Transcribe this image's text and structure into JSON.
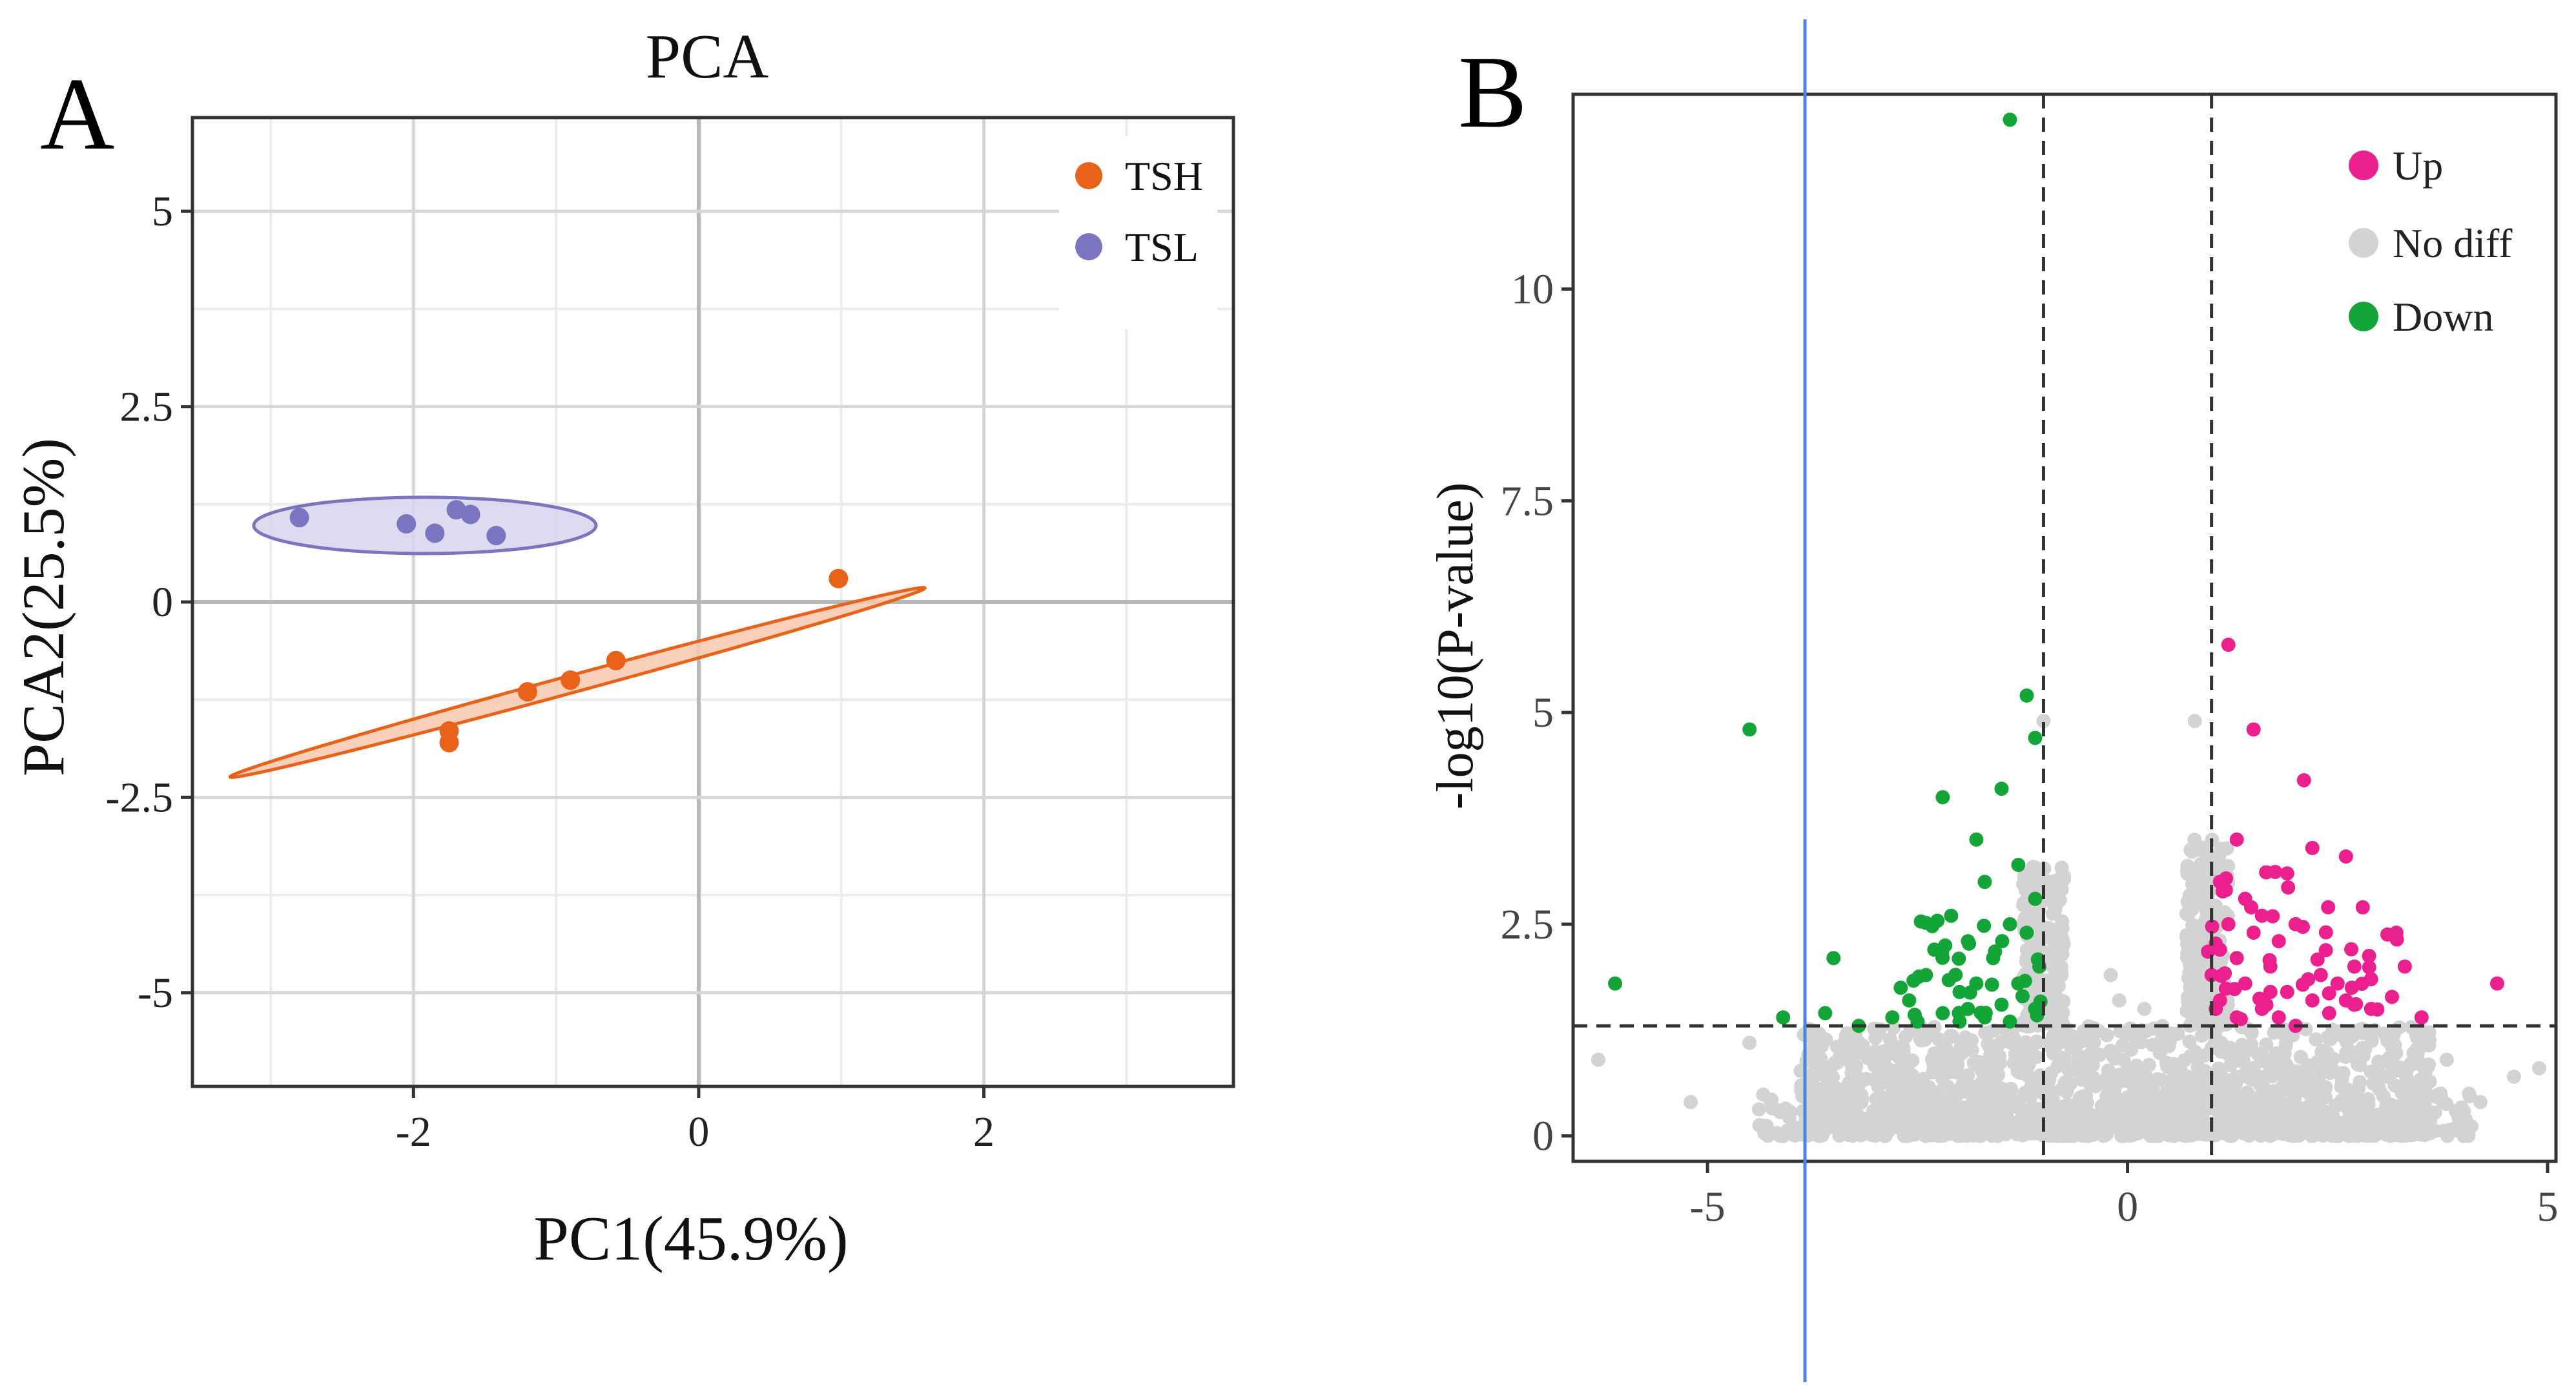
{
  "chart_data": [
    {
      "panel_label": "A",
      "type": "scatter",
      "title": "PCA",
      "xlabel": "PC1(45.9%)",
      "ylabel": "PCA2(25.5%)",
      "xlim": [
        -3.55,
        3.75
      ],
      "ylim": [
        -6.2,
        6.2
      ],
      "x_ticks": [
        -2,
        0,
        2
      ],
      "x_tick_labels": [
        "-2",
        "0",
        "2"
      ],
      "y_ticks": [
        5,
        2.5,
        0,
        -2.5,
        -5
      ],
      "y_tick_labels": [
        "5",
        "2.5",
        "0",
        "-2.5",
        "-5"
      ],
      "grid": true,
      "legend_position": "top-right",
      "series": [
        {
          "name": "TSH",
          "color": "#e8621a",
          "fill": "#f8c8ad",
          "points": [
            [
              -1.75,
              -1.65
            ],
            [
              -1.75,
              -1.8
            ],
            [
              -1.2,
              -1.15
            ],
            [
              -0.9,
              -1.0
            ],
            [
              -0.58,
              -0.75
            ],
            [
              0.98,
              0.3
            ]
          ],
          "ellipse": {
            "cx": -0.85,
            "cy": -1.03,
            "rx": 2.72,
            "ry": 0.11,
            "angle_deg": 26.4
          }
        },
        {
          "name": "TSL",
          "color": "#7b74c0",
          "fill": "#d8d3ec",
          "points": [
            [
              -2.8,
              1.08
            ],
            [
              -2.05,
              1.0
            ],
            [
              -1.85,
              0.88
            ],
            [
              -1.7,
              1.18
            ],
            [
              -1.6,
              1.12
            ],
            [
              -1.42,
              0.85
            ]
          ],
          "ellipse": {
            "cx": -1.92,
            "cy": 0.98,
            "rx": 1.2,
            "ry": 0.36,
            "angle_deg": 0
          }
        }
      ]
    },
    {
      "panel_label": "B",
      "type": "scatter",
      "title": "",
      "xlabel": "",
      "ylabel": "-log10(P-value)",
      "xlim": [
        -6.6,
        5.1
      ],
      "ylim": [
        -0.3,
        12.3
      ],
      "x_ticks": [
        -5,
        0,
        5
      ],
      "x_tick_labels": [
        "-5",
        "0",
        "5"
      ],
      "y_ticks": [
        0,
        2.5,
        5,
        7.5,
        10
      ],
      "y_tick_labels": [
        "0",
        "2.5",
        "5",
        "7.5",
        "10"
      ],
      "grid": false,
      "legend_position": "top-right",
      "thresholds": {
        "log2fc": [
          -1,
          1
        ],
        "neg_log10_p": 1.3
      },
      "series": [
        {
          "name": "Up",
          "color": "#ec1f8e",
          "points": [
            [
              1.2,
              5.8
            ],
            [
              1.5,
              4.8
            ],
            [
              2.1,
              4.2
            ],
            [
              2.2,
              3.4
            ],
            [
              2.6,
              3.3
            ],
            [
              1.3,
              3.5
            ],
            [
              1.9,
              3.1
            ],
            [
              1.1,
              3.0
            ],
            [
              1.4,
              2.8
            ],
            [
              1.6,
              2.6
            ],
            [
              1.2,
              2.5
            ],
            [
              1.5,
              2.4
            ],
            [
              1.8,
              2.3
            ],
            [
              2.0,
              2.5
            ],
            [
              2.8,
              2.7
            ],
            [
              3.2,
              2.4
            ],
            [
              1.1,
              2.2
            ],
            [
              1.3,
              2.1
            ],
            [
              1.7,
              2.0
            ],
            [
              2.3,
              1.9
            ],
            [
              2.7,
              2.0
            ],
            [
              3.3,
              2.0
            ],
            [
              1.0,
              1.9
            ],
            [
              1.4,
              1.8
            ],
            [
              1.9,
              1.7
            ],
            [
              2.5,
              1.8
            ],
            [
              4.4,
              1.8
            ],
            [
              1.1,
              1.6
            ],
            [
              1.6,
              1.5
            ],
            [
              2.2,
              1.6
            ],
            [
              2.9,
              1.5
            ],
            [
              1.3,
              1.4
            ],
            [
              1.8,
              1.4
            ],
            [
              2.4,
              1.45
            ],
            [
              3.5,
              1.4
            ],
            [
              1.05,
              1.5
            ],
            [
              2.6,
              1.6
            ],
            [
              2.0,
              1.3
            ],
            [
              1.7,
              1.7
            ],
            [
              2.15,
              1.85
            ]
          ],
          "bands": [
            {
              "x": [
                0.9,
                2.4
              ],
              "y": [
                1.3,
                3.2
              ],
              "n": 26
            },
            {
              "x": [
                2.3,
                3.4
              ],
              "y": [
                1.3,
                2.4
              ],
              "n": 12
            }
          ]
        },
        {
          "name": "No diff",
          "color": "#d3d3d3",
          "points": [
            [
              -6.3,
              0.9
            ],
            [
              -5.2,
              0.4
            ],
            [
              -4.5,
              1.1
            ],
            [
              -3.8,
              0.7
            ],
            [
              -3.0,
              1.0
            ],
            [
              4.6,
              0.7
            ],
            [
              4.2,
              0.4
            ],
            [
              3.8,
              0.9
            ],
            [
              4.9,
              0.8
            ],
            [
              -1.0,
              4.9
            ],
            [
              0.8,
              4.9
            ],
            [
              -0.2,
              1.9
            ],
            [
              -0.1,
              1.6
            ],
            [
              0.2,
              1.5
            ],
            [
              0.0,
              1.2
            ]
          ],
          "bands": [
            {
              "x": [
                -3.9,
                3.6
              ],
              "y": [
                0.0,
                1.3
              ],
              "n": 1400
            },
            {
              "x": [
                -4.4,
                4.1
              ],
              "y": [
                0.0,
                0.55
              ],
              "n": 450
            },
            {
              "x": [
                -1.25,
                -0.75
              ],
              "y": [
                1.3,
                3.2
              ],
              "n": 220
            },
            {
              "x": [
                0.7,
                1.2
              ],
              "y": [
                1.3,
                3.5
              ],
              "n": 220
            }
          ]
        },
        {
          "name": "Down",
          "color": "#13a538",
          "points": [
            [
              -1.4,
              12.0
            ],
            [
              -4.5,
              4.8
            ],
            [
              -1.2,
              5.2
            ],
            [
              -1.1,
              4.7
            ],
            [
              -1.5,
              4.1
            ],
            [
              -2.2,
              4.0
            ],
            [
              -1.8,
              3.5
            ],
            [
              -1.3,
              3.2
            ],
            [
              -1.7,
              3.0
            ],
            [
              -1.1,
              2.8
            ],
            [
              -2.1,
              2.6
            ],
            [
              -1.4,
              2.5
            ],
            [
              -1.9,
              2.3
            ],
            [
              -1.2,
              2.4
            ],
            [
              -2.3,
              2.2
            ],
            [
              -1.6,
              2.1
            ],
            [
              -3.5,
              2.1
            ],
            [
              -1.05,
              2.0
            ],
            [
              -2.4,
              1.9
            ],
            [
              -1.8,
              1.8
            ],
            [
              -6.1,
              1.8
            ],
            [
              -2.0,
              1.7
            ],
            [
              -1.3,
              1.8
            ],
            [
              -2.6,
              1.6
            ],
            [
              -1.5,
              1.55
            ],
            [
              -1.9,
              1.5
            ],
            [
              -2.2,
              1.45
            ],
            [
              -2.8,
              1.4
            ],
            [
              -1.1,
              1.5
            ],
            [
              -1.7,
              1.4
            ],
            [
              -4.1,
              1.4
            ],
            [
              -3.6,
              1.45
            ],
            [
              -2.5,
              1.35
            ],
            [
              -1.4,
              1.35
            ],
            [
              -3.2,
              1.3
            ],
            [
              -2.0,
              1.35
            ],
            [
              -1.25,
              1.65
            ],
            [
              -2.7,
              1.75
            ]
          ],
          "bands": [
            {
              "x": [
                -2.6,
                -1.0
              ],
              "y": [
                1.3,
                2.6
              ],
              "n": 26
            }
          ]
        }
      ]
    }
  ],
  "colors": {
    "axis_frame": "#333333",
    "threshold_line": "#333333",
    "grid_major": "#d6d6d6",
    "grid_minor": "#ececec",
    "zero_line": "#b8b8b8",
    "blue_line": "#4a86e8"
  }
}
